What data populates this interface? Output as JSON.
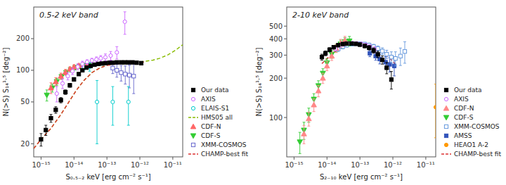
{
  "chart_data": [
    {
      "type": "scatter",
      "title": "0.5-2 keV band",
      "xlabel": "S₀.₅₋₂ keV [erg cm⁻² s⁻¹]",
      "ylabel": "N(>S) S₁₄¹·⁵ [deg⁻²]",
      "log": true,
      "grid": false,
      "legend": "lower right",
      "xlim": [
        6e-16,
        2e-11
      ],
      "ylim": [
        15,
        400
      ],
      "xticks": [
        {
          "value": 1e-15,
          "label": "10⁻¹⁵"
        },
        {
          "value": 1e-14,
          "label": "10⁻¹⁴"
        },
        {
          "value": 1e-13,
          "label": "10⁻¹³"
        },
        {
          "value": 1e-12,
          "label": "10⁻¹²"
        },
        {
          "value": 1e-11,
          "label": "10⁻¹¹"
        }
      ],
      "yticks": [
        20,
        50,
        100,
        200
      ],
      "series": [
        {
          "name": "Our data",
          "type": "scatter",
          "color": "#000000",
          "marker": "square",
          "x": [
            1e-15,
            1.4e-15,
            2e-15,
            2.8e-15,
            4e-15,
            5.5e-15,
            7.5e-15,
            1e-14,
            1.4e-14,
            1.8e-14,
            2.4e-14,
            3.2e-14,
            4.2e-14,
            5.5e-14,
            7e-14,
            9e-14,
            1.2e-13,
            1.5e-13,
            2e-13,
            2.7e-13,
            3.5e-13,
            4.5e-13,
            6e-13,
            8e-13,
            1.1e-12
          ],
          "values": [
            22,
            27,
            35,
            42,
            52,
            62,
            72,
            82,
            92,
            100,
            106,
            110,
            113,
            115,
            116,
            117,
            118,
            118,
            119,
            119,
            119,
            119,
            119,
            118,
            117
          ],
          "yerr_lo": [
            3,
            3,
            3,
            3,
            3,
            3,
            3,
            3,
            3,
            3,
            3,
            3,
            3,
            3,
            3,
            3,
            3,
            3,
            3,
            3,
            3,
            3,
            3,
            3,
            4
          ],
          "yerr_hi": [
            3,
            3,
            3,
            3,
            3,
            3,
            3,
            3,
            3,
            3,
            3,
            3,
            3,
            3,
            3,
            3,
            3,
            3,
            3,
            3,
            3,
            3,
            3,
            3,
            4
          ]
        },
        {
          "name": "AXIS",
          "type": "scatter",
          "color": "#cc66ff",
          "marker": "circle-open",
          "x": [
            3e-15,
            4.5e-15,
            6.5e-15,
            9e-15,
            1.3e-14,
            1.8e-14,
            2.5e-14,
            3.5e-14,
            4.8e-14,
            6.5e-14,
            9e-14,
            1.3e-13,
            2e-13,
            3.5e-13
          ],
          "values": [
            60,
            75,
            88,
            98,
            108,
            115,
            120,
            124,
            127,
            130,
            133,
            138,
            148,
            290
          ],
          "yerr_lo": [
            10,
            8,
            7,
            7,
            7,
            7,
            6,
            6,
            7,
            8,
            10,
            13,
            20,
            70
          ],
          "yerr_hi": [
            10,
            8,
            7,
            7,
            7,
            7,
            6,
            6,
            7,
            8,
            10,
            13,
            20,
            70
          ]
        },
        {
          "name": "ELAIS-S1",
          "type": "scatter",
          "color": "#00cccc",
          "marker": "circle-open",
          "x": [
            2e-14,
            3e-14,
            5e-14,
            1.5e-13,
            4.5e-13
          ],
          "values": [
            108,
            108,
            50,
            50,
            50
          ],
          "yerr_lo": [
            8,
            10,
            30,
            20,
            20
          ],
          "yerr_hi": [
            8,
            10,
            30,
            20,
            20
          ]
        },
        {
          "name": "HMS05 all",
          "type": "line",
          "color": "#88bb00",
          "line_style": "dashed",
          "x": [
            6e-16,
            1e-15,
            2e-15,
            4e-15,
            7e-15,
            1.2e-14,
            2e-14,
            3.5e-14,
            6e-14,
            1e-13,
            1.8e-13,
            3e-13,
            5e-13,
            9e-13,
            1.5e-12,
            2.5e-12,
            4e-12,
            7e-12,
            1.2e-11,
            2e-11
          ],
          "values": [
            18,
            22,
            28,
            38,
            50,
            65,
            80,
            95,
            105,
            112,
            116,
            118,
            119,
            120,
            122,
            125,
            130,
            140,
            155,
            175
          ]
        },
        {
          "name": "CDF-N",
          "type": "scatter",
          "color": "#ff6666",
          "marker": "triangle-up",
          "x": [
            2e-15,
            2.8e-15,
            4e-15,
            5.5e-15,
            7.5e-15,
            1e-14,
            1.4e-14,
            1.9e-14,
            2.5e-14
          ],
          "values": [
            68,
            78,
            88,
            96,
            103,
            108,
            111,
            113,
            114
          ],
          "yerr_lo": [
            8,
            7,
            6,
            6,
            5,
            5,
            5,
            5,
            5
          ],
          "yerr_hi": [
            8,
            7,
            6,
            6,
            5,
            5,
            5,
            5,
            5
          ]
        },
        {
          "name": "CDF-S",
          "type": "scatter",
          "color": "#33cc33",
          "marker": "triangle-down",
          "x": [
            1.5e-15,
            2.2e-15,
            3e-15,
            4.2e-15,
            5.8e-15,
            8e-15,
            1.1e-14,
            1.5e-14,
            2.1e-14,
            2.9e-14
          ],
          "values": [
            58,
            68,
            78,
            87,
            95,
            101,
            106,
            109,
            111,
            113
          ],
          "yerr_lo": [
            7,
            6,
            6,
            5,
            5,
            5,
            5,
            5,
            5,
            5
          ],
          "yerr_hi": [
            7,
            6,
            6,
            5,
            5,
            5,
            5,
            5,
            5,
            5
          ]
        },
        {
          "name": "XMM-COSMOS",
          "type": "scatter",
          "color": "#6666cc",
          "marker": "square-open",
          "x": [
            1.5e-13,
            2e-13,
            2.7e-13,
            3.6e-13,
            4.8e-13,
            6.5e-13
          ],
          "values": [
            105,
            100,
            95,
            92,
            90,
            88
          ],
          "yerr_lo": [
            12,
            14,
            16,
            18,
            22,
            28
          ],
          "yerr_hi": [
            12,
            14,
            16,
            18,
            22,
            28
          ]
        },
        {
          "name": "CHAMP-best fit",
          "type": "line",
          "color": "#dd3333",
          "line_style": "dashed",
          "x": [
            6e-16,
            1e-15,
            2e-15,
            4e-15,
            7e-15,
            1.2e-14,
            2e-14,
            3.5e-14,
            6e-14,
            1e-13,
            1.8e-13,
            3e-13,
            5e-13,
            9e-13,
            1.5e-12
          ],
          "values": [
            18,
            22,
            28,
            38,
            50,
            65,
            80,
            95,
            105,
            111,
            115,
            117,
            118,
            119,
            120
          ]
        }
      ]
    },
    {
      "type": "scatter",
      "title": "2-10 keV band",
      "xlabel": "S₂₋₁₀ keV [erg cm⁻² s⁻¹]",
      "ylabel": "N(>S) S₁₄¹·⁵ [deg⁻²]",
      "log": true,
      "grid": false,
      "legend": "lower right",
      "xlim": [
        6e-16,
        2e-11
      ],
      "ylim": [
        50,
        700
      ],
      "xticks": [
        {
          "value": 1e-15,
          "label": "10⁻¹⁵"
        },
        {
          "value": 1e-14,
          "label": "10⁻¹⁴"
        },
        {
          "value": 1e-13,
          "label": "10⁻¹³"
        },
        {
          "value": 1e-12,
          "label": "10⁻¹²"
        },
        {
          "value": 1e-11,
          "label": "10⁻¹¹"
        }
      ],
      "yticks": [
        100,
        200,
        300,
        400,
        500
      ],
      "series": [
        {
          "name": "Our data",
          "type": "scatter",
          "color": "#000000",
          "marker": "square",
          "x": [
            7e-15,
            9e-15,
            1.2e-14,
            1.6e-14,
            2.2e-14,
            3e-14,
            4e-14,
            5.5e-14,
            7.5e-14,
            1e-13,
            1.4e-13,
            1.9e-13,
            2.6e-13,
            3.5e-13,
            4.8e-13,
            6.5e-13,
            9e-13
          ],
          "values": [
            290,
            310,
            330,
            345,
            358,
            365,
            368,
            368,
            366,
            361,
            353,
            342,
            326,
            304,
            276,
            240,
            195
          ],
          "yerr_lo": [
            15,
            13,
            12,
            11,
            10,
            10,
            10,
            10,
            10,
            11,
            12,
            13,
            15,
            17,
            20,
            24,
            30
          ],
          "yerr_hi": [
            15,
            13,
            12,
            11,
            10,
            10,
            10,
            10,
            10,
            11,
            12,
            13,
            15,
            17,
            20,
            24,
            30
          ]
        },
        {
          "name": "AXIS",
          "type": "scatter",
          "color": "#cc66ff",
          "marker": "circle-open",
          "x": [
            1.8e-14,
            2.5e-14,
            3.3e-14,
            4.5e-14,
            6e-14,
            8e-14,
            1.1e-13,
            1.5e-13,
            2e-13,
            2.8e-13
          ],
          "values": [
            335,
            352,
            362,
            368,
            370,
            369,
            365,
            358,
            346,
            330
          ],
          "yerr_lo": [
            12,
            11,
            10,
            10,
            10,
            10,
            11,
            12,
            14,
            17
          ],
          "yerr_hi": [
            12,
            11,
            10,
            10,
            10,
            10,
            11,
            12,
            14,
            17
          ]
        },
        {
          "name": "CDF-N",
          "type": "scatter",
          "color": "#ff8888",
          "marker": "triangle-up",
          "x": [
            2e-15,
            2.8e-15,
            4e-15,
            5.5e-15,
            7.5e-15,
            1e-14,
            1.4e-14,
            1.9e-14,
            2.6e-14,
            3.5e-14
          ],
          "values": [
            75,
            98,
            125,
            160,
            200,
            248,
            295,
            338,
            370,
            390
          ],
          "yerr_lo": [
            12,
            12,
            14,
            16,
            18,
            20,
            22,
            24,
            26,
            28
          ],
          "yerr_hi": [
            12,
            12,
            14,
            16,
            18,
            20,
            22,
            24,
            26,
            28
          ]
        },
        {
          "name": "CDF-S",
          "type": "scatter",
          "color": "#33cc33",
          "marker": "triangle-down",
          "x": [
            1.5e-15,
            2e-15,
            2.8e-15,
            4e-15,
            5.5e-15,
            7.5e-15,
            1e-14,
            1.4e-14,
            1.9e-14,
            2.6e-14,
            3.5e-14,
            4.8e-14
          ],
          "values": [
            65,
            80,
            105,
            138,
            175,
            218,
            262,
            305,
            340,
            365,
            380,
            385
          ],
          "yerr_lo": [
            12,
            12,
            13,
            14,
            16,
            18,
            19,
            21,
            23,
            25,
            28,
            32
          ],
          "yerr_hi": [
            12,
            12,
            13,
            14,
            16,
            18,
            19,
            21,
            23,
            25,
            28,
            32
          ]
        },
        {
          "name": "XMM-COSMOS",
          "type": "scatter",
          "color": "#6699dd",
          "marker": "square-open",
          "x": [
            2.2e-14,
            3e-14,
            4e-14,
            5.5e-14,
            7.5e-14,
            1e-13,
            1.4e-13,
            1.9e-13,
            2.6e-13,
            3.5e-13,
            4.8e-13,
            6.5e-13,
            9e-13,
            1.2e-12,
            1.7e-12,
            2.3e-12
          ],
          "values": [
            335,
            348,
            358,
            364,
            367,
            367,
            364,
            358,
            349,
            337,
            322,
            305,
            290,
            283,
            295,
            320
          ],
          "yerr_lo": [
            15,
            13,
            12,
            11,
            11,
            11,
            12,
            13,
            14,
            16,
            19,
            22,
            28,
            35,
            45,
            60
          ],
          "yerr_hi": [
            15,
            13,
            12,
            11,
            11,
            11,
            12,
            13,
            14,
            16,
            19,
            22,
            28,
            35,
            45,
            60
          ]
        },
        {
          "name": "AMSS",
          "type": "scatter",
          "color": "#3355bb",
          "marker": "square",
          "x": [
            2e-13,
            3e-13,
            4e-13,
            6e-13,
            8e-13,
            1.1e-12
          ],
          "values": [
            310,
            295,
            280,
            265,
            255,
            248
          ],
          "yerr_lo": [
            18,
            20,
            23,
            27,
            32,
            40
          ],
          "yerr_hi": [
            18,
            20,
            23,
            27,
            32,
            40
          ]
        },
        {
          "name": "HEAO1 A-2",
          "type": "scatter",
          "color": "#ff9900",
          "marker": "circle",
          "x": [
            2e-11
          ],
          "values": [
            120
          ],
          "yerr_lo": [
            50
          ],
          "yerr_hi": [
            60
          ]
        },
        {
          "name": "CHAMP-best fit",
          "type": "line",
          "color": "#dd3333",
          "line_style": "dashed",
          "x": [
            7e-15,
            1e-14,
            1.5e-14,
            2e-14,
            3e-14,
            5e-14,
            8e-14,
            1.2e-13,
            2e-13,
            3e-13,
            5e-13,
            8e-13,
            1.2e-12
          ],
          "values": [
            258,
            283,
            308,
            328,
            350,
            366,
            372,
            371,
            360,
            342,
            316,
            285,
            255
          ]
        }
      ]
    }
  ]
}
